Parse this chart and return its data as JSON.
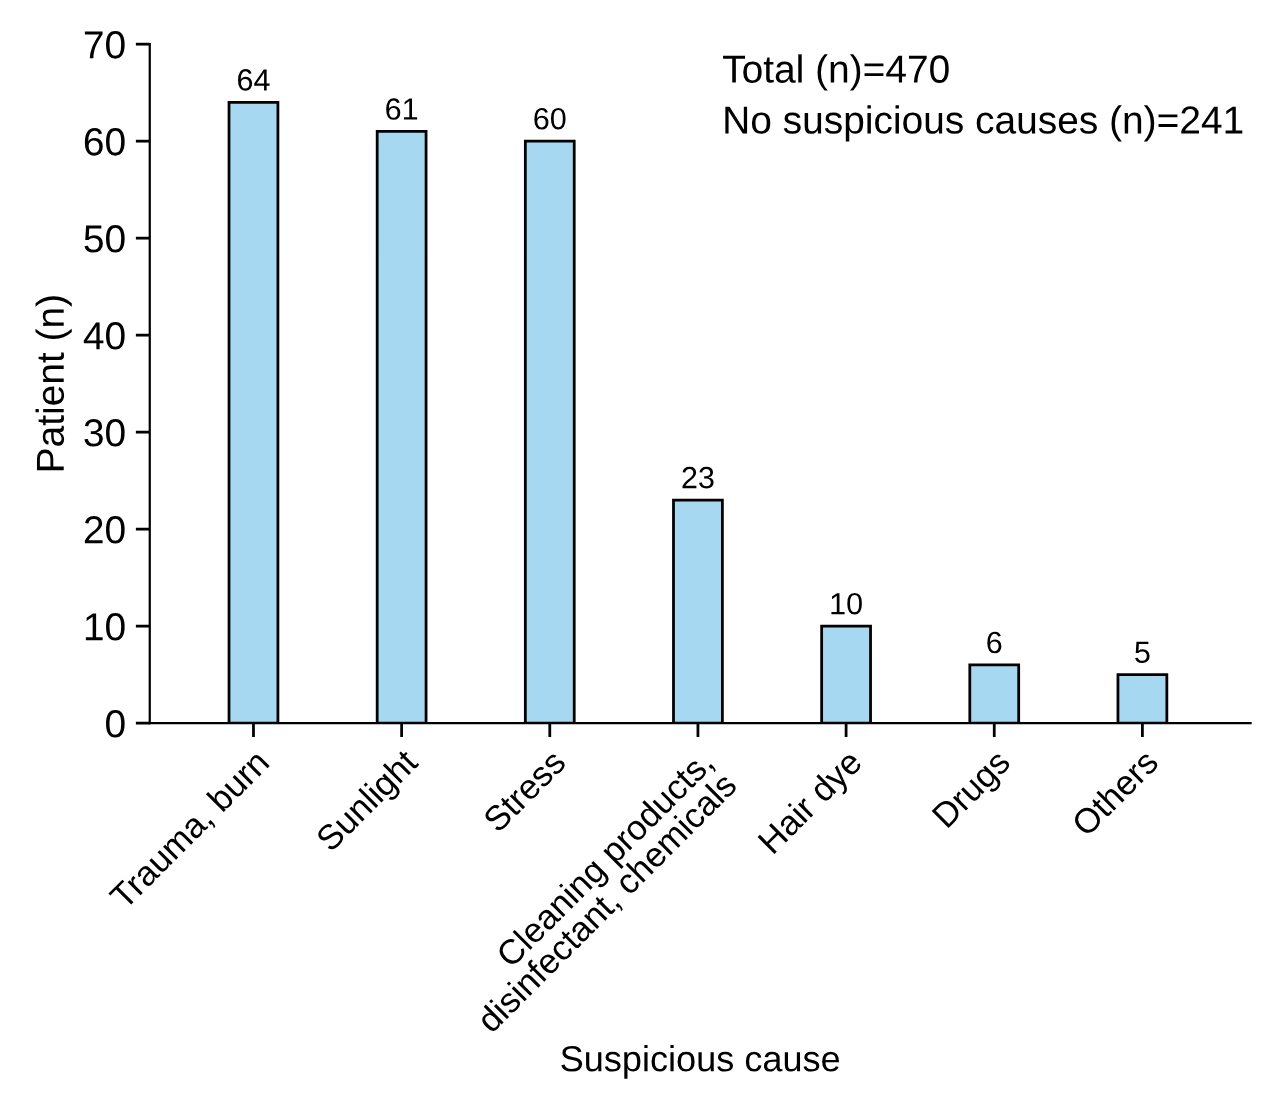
{
  "chart_data": {
    "type": "bar",
    "xlabel": "Suspicious cause",
    "ylabel": "Patient (n)",
    "categories": [
      "Trauma, burn",
      "Sunlight",
      "Stress",
      "Cleaning products,\ndisinfectant, chemicals",
      "Hair dye",
      "Drugs",
      "Others"
    ],
    "values": [
      64,
      61,
      60,
      23,
      10,
      6,
      5
    ],
    "color": "#a6d8f2",
    "ylim": [
      0,
      70
    ],
    "yticks": [
      0,
      10,
      20,
      30,
      40,
      50,
      60,
      70
    ],
    "grid": false,
    "data_labels": true,
    "annotations": [
      "Total (n)=470",
      "No suspicious causes (n)=241"
    ]
  }
}
